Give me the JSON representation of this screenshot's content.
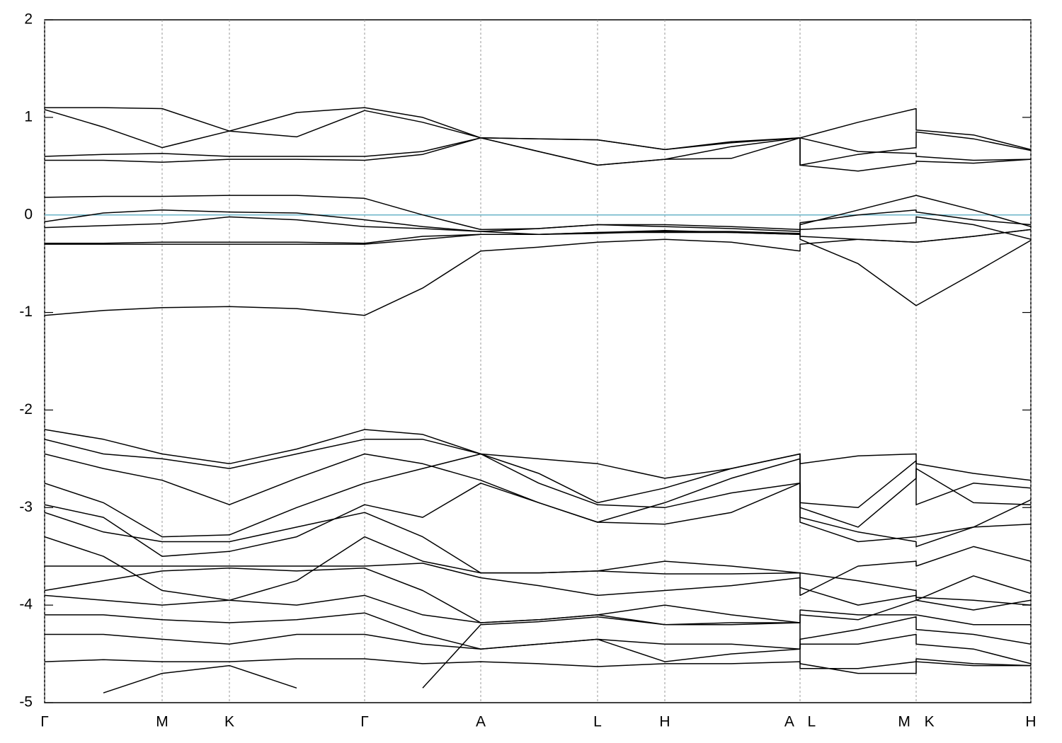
{
  "chart_data": {
    "type": "line",
    "x": [
      0,
      0.083,
      0.166,
      0.261,
      0.356,
      0.452,
      0.534,
      0.616,
      0.698,
      0.781,
      0.876,
      0.97,
      1.067,
      1.067,
      1.149,
      1.231,
      1.231,
      1.312,
      1.393
    ],
    "xlim": [
      0,
      1.393
    ],
    "xticks": [
      {
        "value": 0,
        "label": "Γ"
      },
      {
        "value": 0.166,
        "label": "M"
      },
      {
        "value": 0.261,
        "label": "K"
      },
      {
        "value": 0.452,
        "label": "Γ"
      },
      {
        "value": 0.616,
        "label": "A"
      },
      {
        "value": 0.781,
        "label": "L"
      },
      {
        "value": 0.876,
        "label": "H"
      },
      {
        "value": 1.067,
        "label": "A L"
      },
      {
        "value": 1.231,
        "label": "M K"
      },
      {
        "value": 1.393,
        "label": "H"
      }
    ],
    "ylim": [
      -5,
      2
    ],
    "yticks": [
      2,
      1,
      0,
      -1,
      -2,
      -3,
      -4,
      -5
    ],
    "vertical_grid": true,
    "fermi_level": 0,
    "fermi_color": "#6ab4c8",
    "series": [
      {
        "color": "#000000",
        "values": [
          1.1,
          1.1,
          1.09,
          0.86,
          1.05,
          1.1,
          1.0,
          0.79,
          0.78,
          0.77,
          0.67,
          0.75,
          0.79,
          0.79,
          0.95,
          1.09,
          0.87,
          0.82,
          0.67
        ]
      },
      {
        "color": "#000000",
        "values": [
          1.08,
          0.9,
          0.69,
          0.86,
          0.8,
          1.07,
          0.95,
          0.79,
          0.65,
          0.51,
          0.57,
          0.7,
          0.79,
          0.51,
          0.62,
          0.69,
          0.85,
          0.78,
          0.66
        ]
      },
      {
        "color": "#000000",
        "values": [
          0.6,
          0.62,
          0.63,
          0.6,
          0.6,
          0.6,
          0.65,
          0.79,
          0.65,
          0.51,
          0.57,
          0.58,
          0.79,
          0.79,
          0.65,
          0.63,
          0.6,
          0.56,
          0.57
        ]
      },
      {
        "color": "#000000",
        "values": [
          0.56,
          0.56,
          0.54,
          0.57,
          0.57,
          0.56,
          0.62,
          0.79,
          0.78,
          0.77,
          0.67,
          0.74,
          0.79,
          0.51,
          0.45,
          0.53,
          0.55,
          0.53,
          0.57
        ]
      },
      {
        "color": "#000000",
        "values": [
          0.18,
          0.19,
          0.19,
          0.2,
          0.2,
          0.17,
          0,
          -0.15,
          -0.14,
          -0.1,
          -0.12,
          -0.14,
          -0.17,
          -0.1,
          0.05,
          0.2,
          0.2,
          0.05,
          -0.12
        ]
      },
      {
        "color": "#000000",
        "values": [
          -0.07,
          0.02,
          0.05,
          0.03,
          0.02,
          -0.05,
          -0.12,
          -0.17,
          -0.14,
          -0.1,
          -0.1,
          -0.12,
          -0.15,
          -0.08,
          0,
          0.05,
          0.03,
          -0.05,
          -0.1
        ]
      },
      {
        "color": "#000000",
        "values": [
          -0.13,
          -0.11,
          -0.09,
          -0.02,
          -0.05,
          -0.12,
          -0.14,
          -0.17,
          -0.2,
          -0.18,
          -0.16,
          -0.18,
          -0.2,
          -0.15,
          -0.12,
          -0.08,
          -0.02,
          -0.1,
          -0.25
        ]
      },
      {
        "color": "#000000",
        "values": [
          -0.29,
          -0.29,
          -0.28,
          -0.28,
          -0.28,
          -0.29,
          -0.22,
          -0.2,
          -0.2,
          -0.18,
          -0.18,
          -0.18,
          -0.2,
          -0.22,
          -0.25,
          -0.28,
          -0.28,
          -0.22,
          -0.15
        ]
      },
      {
        "color": "#000000",
        "values": [
          -0.3,
          -0.3,
          -0.3,
          -0.3,
          -0.3,
          -0.3,
          -0.25,
          -0.2,
          -0.2,
          -0.19,
          -0.17,
          -0.17,
          -0.19,
          -0.25,
          -0.5,
          -0.93,
          -0.93,
          -0.6,
          -0.26
        ]
      },
      {
        "color": "#000000",
        "values": [
          -1.03,
          -0.98,
          -0.95,
          -0.94,
          -0.96,
          -1.03,
          -0.75,
          -0.37,
          -0.33,
          -0.28,
          -0.25,
          -0.28,
          -0.37,
          -0.3,
          -0.25,
          -0.28,
          -0.28,
          -0.22,
          -0.15
        ]
      },
      {
        "color": "#000000",
        "values": [
          -2.2,
          -2.3,
          -2.45,
          -2.55,
          -2.4,
          -2.2,
          -2.25,
          -2.45,
          -2.5,
          -2.55,
          -2.7,
          -2.6,
          -2.45,
          -2.55,
          -2.47,
          -2.45,
          -2.55,
          -2.65,
          -2.72
        ]
      },
      {
        "color": "#000000",
        "values": [
          -2.3,
          -2.45,
          -2.5,
          -2.6,
          -2.45,
          -2.3,
          -2.3,
          -2.45,
          -2.65,
          -2.95,
          -2.8,
          -2.6,
          -2.45,
          -2.95,
          -3.0,
          -2.52,
          -2.97,
          -2.75,
          -2.8
        ]
      },
      {
        "color": "#000000",
        "values": [
          -2.45,
          -2.6,
          -2.72,
          -2.97,
          -2.7,
          -2.45,
          -2.55,
          -2.72,
          -2.95,
          -3.15,
          -2.95,
          -2.7,
          -2.5,
          -3.0,
          -3.2,
          -2.7,
          -2.6,
          -2.95,
          -2.97
        ]
      },
      {
        "color": "#000000",
        "values": [
          -2.75,
          -2.95,
          -3.3,
          -3.28,
          -3.0,
          -2.75,
          -2.6,
          -2.45,
          -2.75,
          -2.97,
          -3.0,
          -2.85,
          -2.75,
          -3.15,
          -3.35,
          -3.3,
          -3.3,
          -3.2,
          -2.92
        ]
      },
      {
        "color": "#000000",
        "values": [
          -2.97,
          -3.1,
          -3.5,
          -3.45,
          -3.3,
          -2.97,
          -3.1,
          -2.75,
          -2.95,
          -3.15,
          -3.17,
          -3.05,
          -2.75,
          -3.1,
          -3.25,
          -3.35,
          -3.4,
          -3.2,
          -3.17
        ]
      },
      {
        "color": "#000000",
        "values": [
          -3.05,
          -3.25,
          -3.35,
          -3.35,
          -3.2,
          -3.05,
          -3.3,
          -3.67,
          -3.67,
          -3.65,
          -3.55,
          -3.6,
          -3.67,
          -3.9,
          -3.6,
          -3.55,
          -3.6,
          -3.4,
          -3.55
        ]
      },
      {
        "color": "#000000",
        "values": [
          -3.3,
          -3.5,
          -3.85,
          -3.95,
          -3.75,
          -3.3,
          -3.55,
          -3.67,
          -3.67,
          -3.65,
          -3.68,
          -3.68,
          -3.67,
          -3.67,
          -3.75,
          -3.85,
          -3.95,
          -3.7,
          -3.88
        ]
      },
      {
        "color": "#000000",
        "values": [
          -3.6,
          -3.6,
          -3.6,
          -3.6,
          -3.6,
          -3.6,
          -3.57,
          -3.72,
          -3.8,
          -3.9,
          -3.85,
          -3.8,
          -3.72,
          -3.82,
          -4.0,
          -3.9,
          -3.92,
          -3.95,
          -4.0
        ]
      },
      {
        "color": "#000000",
        "values": [
          -3.85,
          -3.75,
          -3.65,
          -3.62,
          -3.65,
          -3.62,
          -3.85,
          -4.18,
          -4.15,
          -4.1,
          -4.0,
          -4.1,
          -4.18,
          -4.05,
          -4.1,
          -4.1,
          -4.1,
          -4.2,
          -4.2
        ]
      },
      {
        "color": "#000000",
        "values": [
          -3.9,
          -3.95,
          -4.0,
          -3.95,
          -4.0,
          -3.9,
          -4.1,
          -4.18,
          -4.15,
          -4.1,
          -4.2,
          -4.2,
          -4.18,
          -4.1,
          -4.15,
          -3.95,
          -3.95,
          -4.05,
          -3.95
        ]
      },
      {
        "color": "#000000",
        "values": [
          -4.1,
          -4.1,
          -4.15,
          -4.18,
          -4.15,
          -4.08,
          -4.3,
          -4.45,
          -4.4,
          -4.35,
          -4.4,
          -4.4,
          -4.45,
          -4.35,
          -4.25,
          -4.12,
          -4.25,
          -4.3,
          -4.4
        ]
      },
      {
        "color": "#000000",
        "values": [
          -4.3,
          -4.3,
          -4.35,
          -4.4,
          -4.3,
          -4.3,
          -4.4,
          -4.45,
          -4.4,
          -4.35,
          -4.58,
          -4.5,
          -4.45,
          -4.4,
          -4.4,
          -4.3,
          -4.4,
          -4.45,
          -4.6
        ]
      },
      {
        "color": "#000000",
        "values": [
          -4.58,
          -4.56,
          -4.58,
          -4.58,
          -4.55,
          -4.55,
          -4.6,
          -4.58,
          -4.6,
          -4.63,
          -4.6,
          -4.6,
          -4.58,
          -4.65,
          -4.65,
          -4.58,
          -4.58,
          -4.62,
          -4.62
        ]
      },
      {
        "color": "#000000",
        "values": [
          null,
          -4.9,
          -4.7,
          -4.62,
          -4.85,
          null,
          -4.85,
          -4.2,
          -4.17,
          -4.12,
          -4.2,
          -4.18,
          -4.18,
          -4.6,
          -4.7,
          -4.7,
          -4.55,
          -4.6,
          -4.62
        ]
      }
    ]
  }
}
